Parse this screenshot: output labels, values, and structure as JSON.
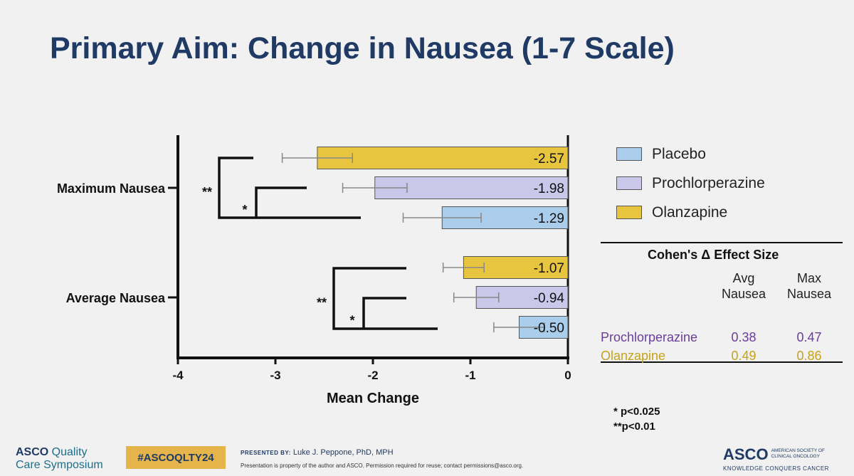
{
  "slide": {
    "title": "Primary Aim: Change in Nausea (1-7 Scale)"
  },
  "chart_data": {
    "type": "bar",
    "orientation": "horizontal",
    "categories": [
      "Maximum Nausea",
      "Average Nausea"
    ],
    "series": [
      {
        "name": "Olanzapine",
        "color": "#e8c53e",
        "values": [
          -2.57,
          -1.07
        ],
        "error": [
          0.36,
          0.21
        ]
      },
      {
        "name": "Prochlorperazine",
        "color": "#c9c7ea",
        "values": [
          -1.98,
          -0.94
        ],
        "error": [
          0.33,
          0.23
        ]
      },
      {
        "name": "Placebo",
        "color": "#a9cdea",
        "values": [
          -1.29,
          -0.5
        ],
        "error": [
          0.4,
          0.26
        ]
      }
    ],
    "data_labels": [
      [
        "-2.57",
        "-1.07"
      ],
      [
        "-1.98",
        "-0.94"
      ],
      [
        "-1.29",
        "-0.50"
      ]
    ],
    "xlabel": "Mean Change",
    "xlim": [
      -4,
      0
    ],
    "xticks": [
      "-4",
      "-3",
      "-2",
      "-1",
      "0"
    ],
    "grid": false,
    "significance": {
      "Maximum Nausea": {
        "outer": "**",
        "inner": "*"
      },
      "Average Nausea": {
        "outer": "**",
        "inner": "*"
      }
    }
  },
  "legend": {
    "items": [
      {
        "label": "Placebo",
        "color": "#a9cdea"
      },
      {
        "label": "Prochlorperazine",
        "color": "#c9c7ea"
      },
      {
        "label": "Olanzapine",
        "color": "#e8c53e"
      }
    ]
  },
  "effect_table": {
    "title": "Cohen's Δ Effect Size",
    "col1": [
      "Avg",
      "Nausea"
    ],
    "col2": [
      "Max",
      "Nausea"
    ],
    "rows": [
      {
        "label": "Prochlorperazine",
        "avg": "0.38",
        "max": "0.47",
        "color": "#6a3d9a"
      },
      {
        "label": "Olanzapine",
        "avg": "0.49",
        "max": "0.86",
        "color": "#c6a21a"
      }
    ]
  },
  "notes": {
    "p1": "* p<0.025",
    "p2": "**p<0.01"
  },
  "footer": {
    "logo_line1_a": "ASCO",
    "logo_line1_b": " Quality",
    "logo_line2": "Care Symposium",
    "hashtag": "#ASCOQLTY24",
    "presented_by": "PRESENTED BY:",
    "presenter": "Luke J. Peppone, PhD, MPH",
    "disclaimer": "Presentation is property of the author and ASCO. Permission required for reuse; contact permissions@asco.org.",
    "asco": "ASCO",
    "society_line1": "AMERICAN SOCIETY OF",
    "society_line2": "CLINICAL ONCOLOGY",
    "tagline": "KNOWLEDGE CONQUERS CANCER"
  }
}
